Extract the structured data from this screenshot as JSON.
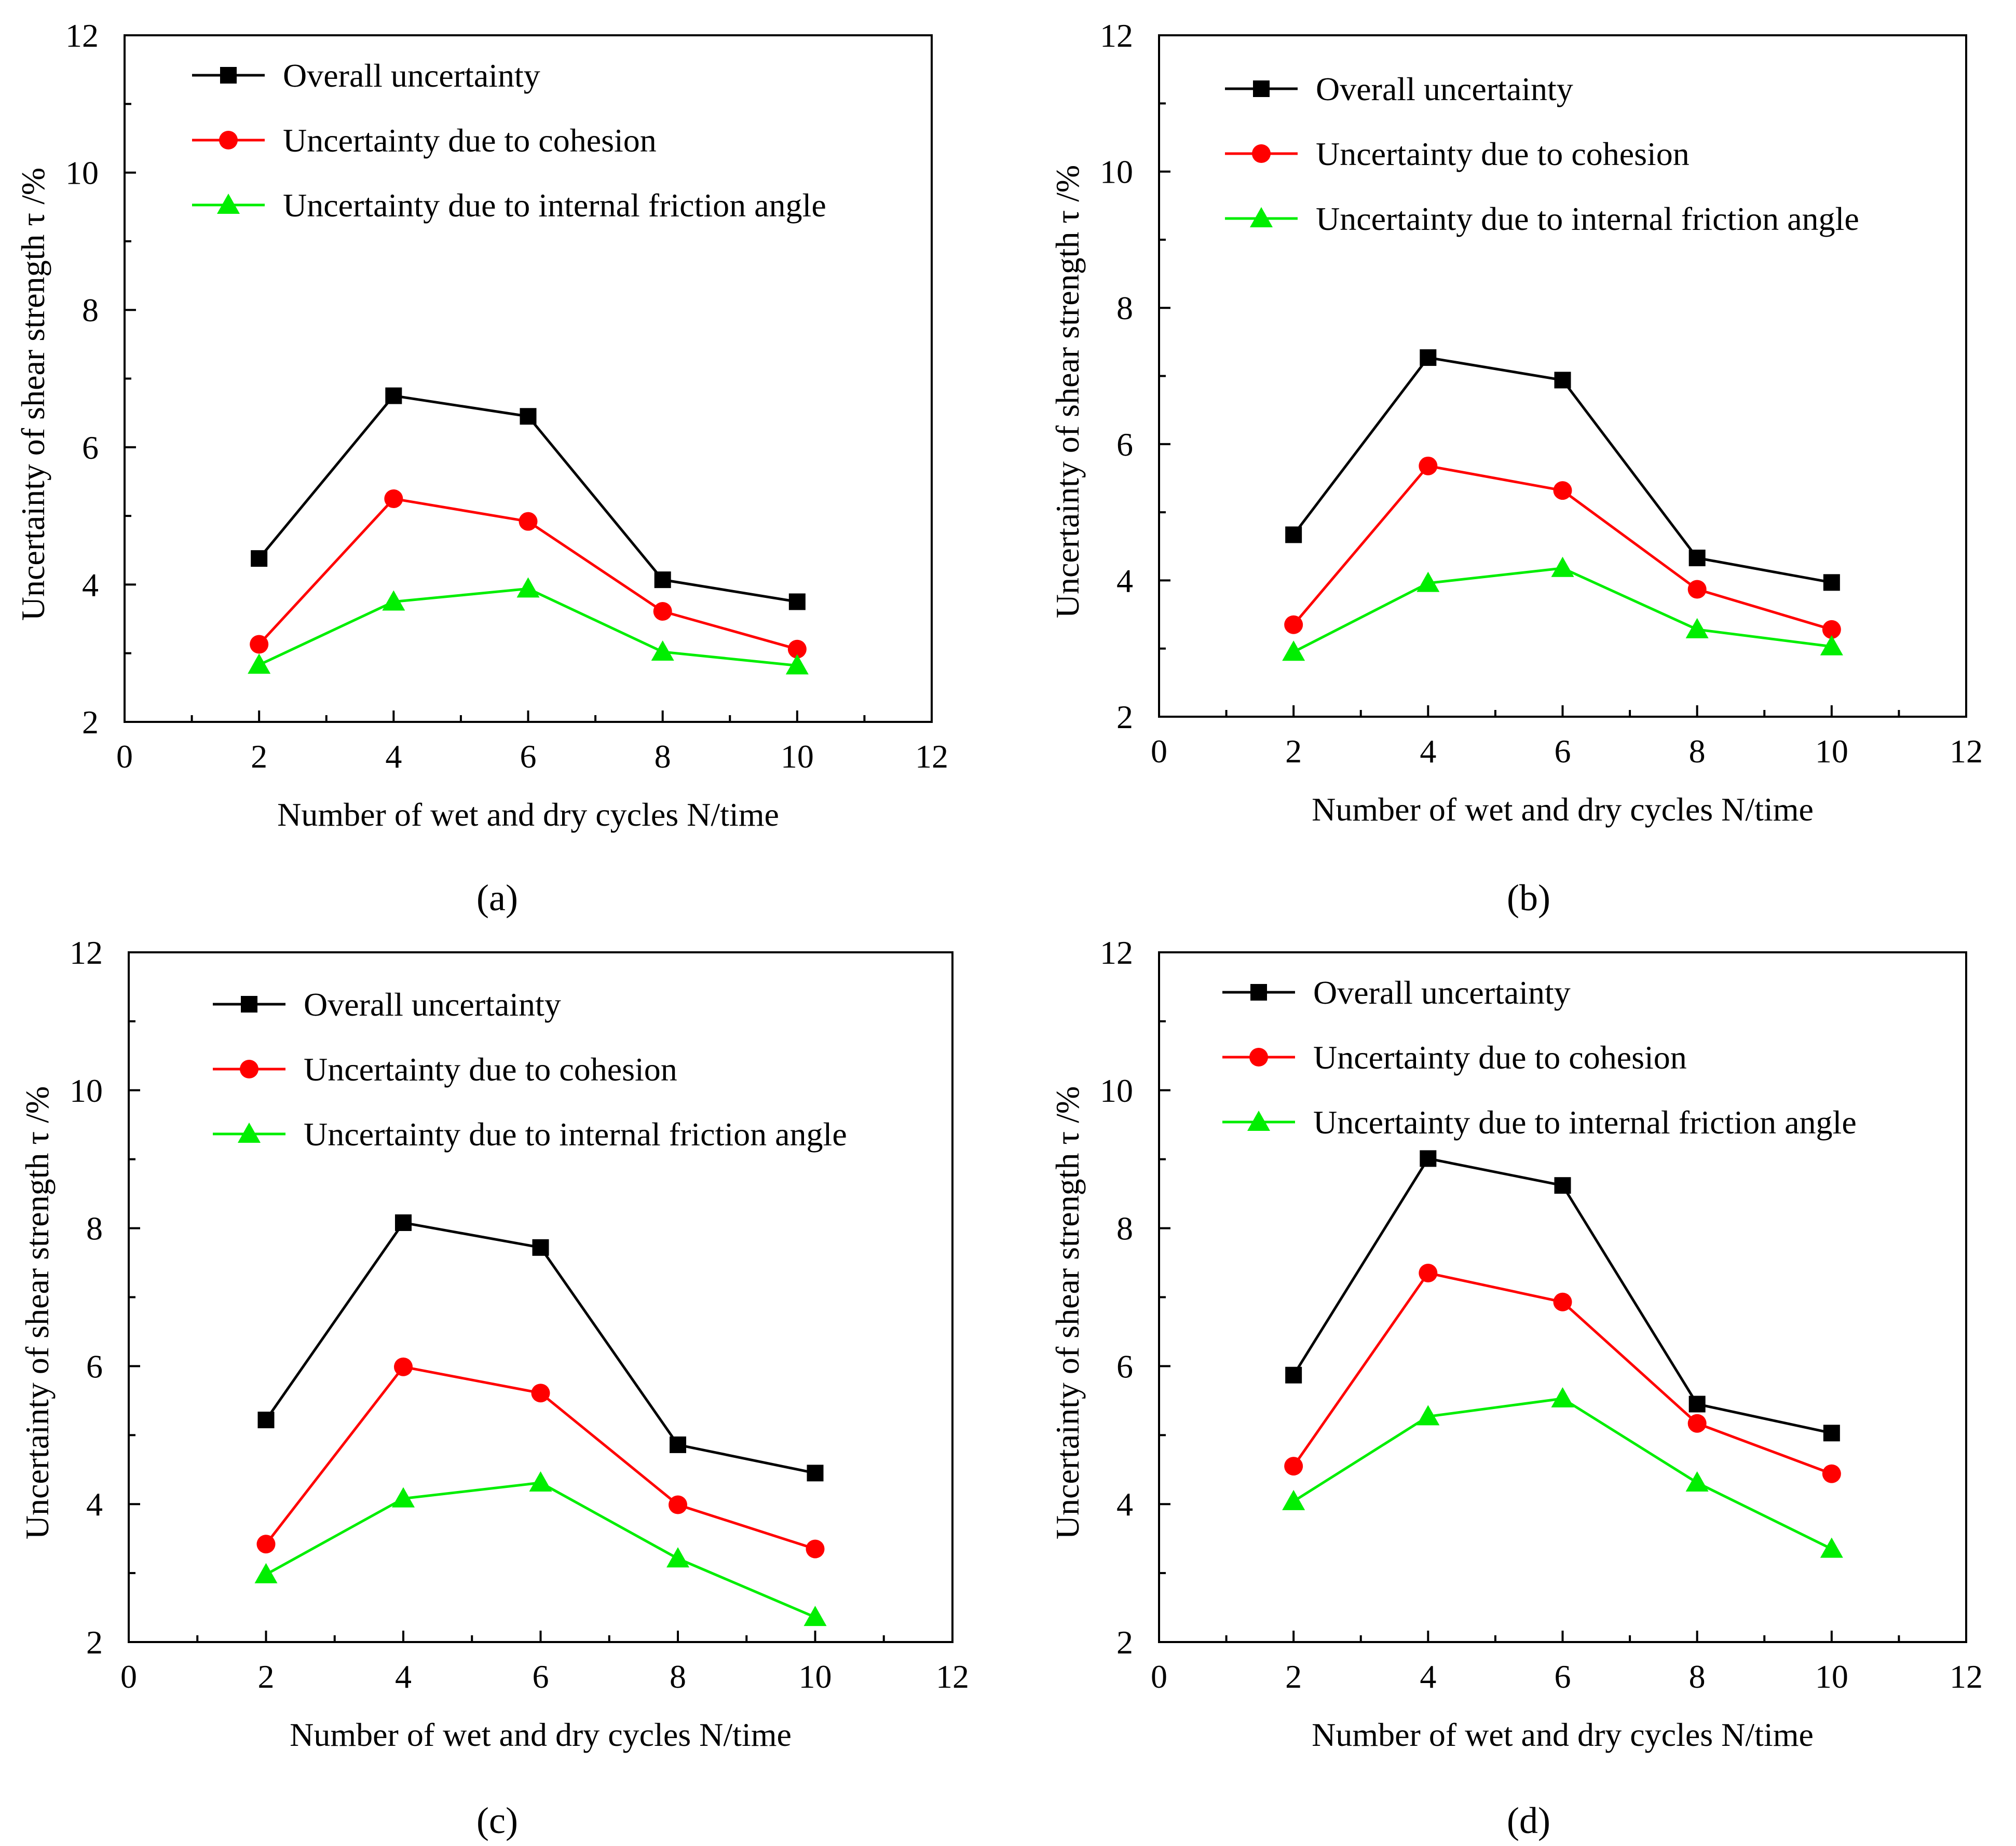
{
  "figure": {
    "panels": [
      {
        "label": "a",
        "legend": [
          "Overall uncertainty",
          "Uncertainty due to cohesion",
          "Uncertainty due to internal friction angle"
        ]
      },
      {
        "label": "b",
        "legend": [
          "Overall uncertainty",
          "Uncertainty due to cohesion",
          "Uncertainty due to internal friction angle"
        ]
      },
      {
        "label": "c",
        "legend": [
          "Overall uncertainty",
          "Uncertainty due to cohesion",
          "Uncertainty due to internal friction angle"
        ]
      },
      {
        "label": "d",
        "legend": [
          "Overall uncertainty",
          "Uncertainty due to cohesion",
          "Uncertainty due to internal friction angle"
        ]
      }
    ]
  },
  "colors": {
    "overall": "#000000",
    "cohesion": "#ff0000",
    "friction": "#00ee00",
    "axis": "#000000"
  },
  "chart_data": [
    {
      "type": "line",
      "panel": "(a)",
      "xlabel": "Number of wet and dry cycles N/time",
      "ylabel": "Uncertainty of shear strength τ /%",
      "xlim": [
        0,
        12
      ],
      "ylim": [
        2,
        12
      ],
      "xticks": [
        0,
        2,
        4,
        6,
        8,
        10,
        12
      ],
      "yticks": [
        2,
        4,
        6,
        8,
        10,
        12
      ],
      "x": [
        2,
        4,
        6,
        8,
        10
      ],
      "legend_position": "top-left",
      "grid": false,
      "series": [
        {
          "name": "Overall uncertainty",
          "marker": "square",
          "values": [
            4.38,
            6.75,
            6.45,
            4.07,
            3.75
          ]
        },
        {
          "name": "Uncertainty due to cohesion",
          "marker": "circle",
          "values": [
            3.13,
            5.25,
            4.92,
            3.61,
            3.06
          ]
        },
        {
          "name": "Uncertainty due to internal friction angle",
          "marker": "triangle",
          "values": [
            2.83,
            3.75,
            3.94,
            3.02,
            2.82
          ]
        }
      ]
    },
    {
      "type": "line",
      "panel": "(b)",
      "xlabel": "Number of wet and dry cycles N/time",
      "ylabel": "Uncertainty of shear strength τ /%",
      "xlim": [
        0,
        12
      ],
      "ylim": [
        2,
        12
      ],
      "xticks": [
        0,
        2,
        4,
        6,
        8,
        10,
        12
      ],
      "yticks": [
        2,
        4,
        6,
        8,
        10,
        12
      ],
      "x": [
        2,
        4,
        6,
        8,
        10
      ],
      "legend_position": "top-left",
      "grid": false,
      "series": [
        {
          "name": "Overall uncertainty",
          "marker": "square",
          "values": [
            4.67,
            7.27,
            6.94,
            4.33,
            3.97
          ]
        },
        {
          "name": "Uncertainty due to cohesion",
          "marker": "circle",
          "values": [
            3.35,
            5.68,
            5.32,
            3.87,
            3.28
          ]
        },
        {
          "name": "Uncertainty due to internal friction angle",
          "marker": "triangle",
          "values": [
            2.95,
            3.96,
            4.18,
            3.28,
            3.03
          ]
        }
      ]
    },
    {
      "type": "line",
      "panel": "(c)",
      "xlabel": "Number of wet and dry cycles N/time",
      "ylabel": "Uncertainty of shear strength τ /%",
      "xlim": [
        0,
        12
      ],
      "ylim": [
        2,
        12
      ],
      "xticks": [
        0,
        2,
        4,
        6,
        8,
        10,
        12
      ],
      "yticks": [
        2,
        4,
        6,
        8,
        10,
        12
      ],
      "x": [
        2,
        4,
        6,
        8,
        10
      ],
      "legend_position": "top-left",
      "grid": false,
      "series": [
        {
          "name": "Overall uncertainty",
          "marker": "square",
          "values": [
            5.22,
            8.08,
            7.72,
            4.86,
            4.45
          ]
        },
        {
          "name": "Uncertainty due to cohesion",
          "marker": "circle",
          "values": [
            3.42,
            5.99,
            5.61,
            3.99,
            3.35
          ]
        },
        {
          "name": "Uncertainty due to internal friction angle",
          "marker": "triangle",
          "values": [
            2.98,
            4.08,
            4.31,
            3.21,
            2.36
          ]
        }
      ]
    },
    {
      "type": "line",
      "panel": "(d)",
      "xlabel": "Number of wet and dry cycles N/time",
      "ylabel": "Uncertainty of shear strength τ /%",
      "xlim": [
        0,
        12
      ],
      "ylim": [
        2,
        12
      ],
      "xticks": [
        0,
        2,
        4,
        6,
        8,
        10,
        12
      ],
      "yticks": [
        2,
        4,
        6,
        8,
        10,
        12
      ],
      "x": [
        2,
        4,
        6,
        8,
        10
      ],
      "legend_position": "top-left",
      "grid": false,
      "series": [
        {
          "name": "Overall uncertainty",
          "marker": "square",
          "values": [
            5.87,
            9.01,
            8.62,
            5.45,
            5.03
          ]
        },
        {
          "name": "Uncertainty due to cohesion",
          "marker": "circle",
          "values": [
            4.55,
            7.35,
            6.93,
            5.17,
            4.44
          ]
        },
        {
          "name": "Uncertainty due to internal friction angle",
          "marker": "triangle",
          "values": [
            4.04,
            5.27,
            5.53,
            4.31,
            3.35
          ]
        }
      ]
    }
  ]
}
